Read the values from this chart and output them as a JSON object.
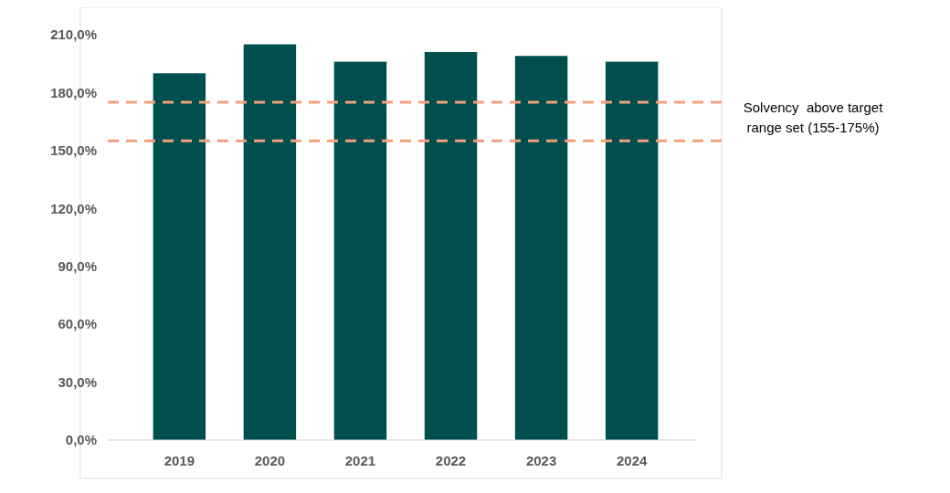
{
  "chart_data": {
    "type": "bar",
    "categories": [
      "2019",
      "2020",
      "2021",
      "2022",
      "2023",
      "2024"
    ],
    "values": [
      190,
      205,
      196,
      201,
      199,
      196
    ],
    "color": "#004f4f",
    "ylim": [
      0,
      210
    ],
    "yticks": [
      {
        "value": 0,
        "label": "0,0%"
      },
      {
        "value": 30,
        "label": "30,0%"
      },
      {
        "value": 60,
        "label": "60,0%"
      },
      {
        "value": 90,
        "label": "90,0%"
      },
      {
        "value": 120,
        "label": "120,0%"
      },
      {
        "value": 150,
        "label": "150,0%"
      },
      {
        "value": 180,
        "label": "180,0%"
      },
      {
        "value": 210,
        "label": "210,0%"
      }
    ],
    "grid": false,
    "ref_lines": [
      {
        "axis": "y",
        "value": 175,
        "color": "#f4a07a",
        "line_style": "dashed"
      },
      {
        "axis": "y",
        "value": 155,
        "color": "#f4a07a",
        "line_style": "dashed"
      }
    ],
    "annotations": [
      "Solvency  above target range set (155-175%)"
    ]
  }
}
